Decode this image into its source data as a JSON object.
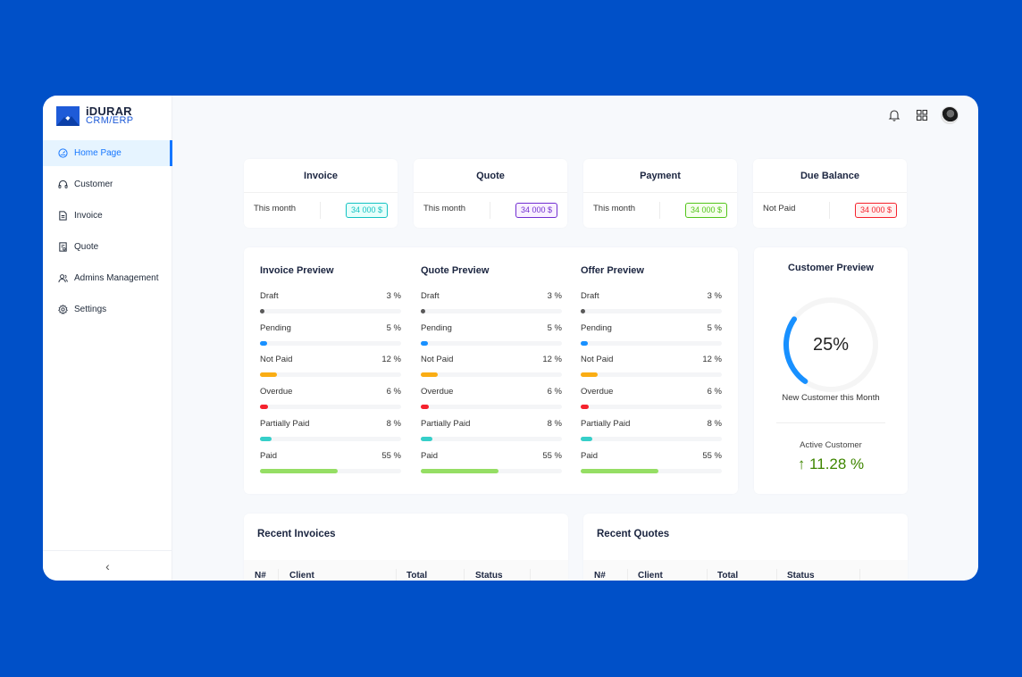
{
  "app": {
    "logo_main": "iDURAR",
    "logo_sub": "CRM/ERP"
  },
  "sidebar": {
    "items": [
      {
        "label": "Home Page",
        "icon": "dashboard-icon",
        "active": true
      },
      {
        "label": "Customer",
        "icon": "headset-icon",
        "active": false
      },
      {
        "label": "Invoice",
        "icon": "file-text-icon",
        "active": false
      },
      {
        "label": "Quote",
        "icon": "file-sync-icon",
        "active": false
      },
      {
        "label": "Admins Management",
        "icon": "team-icon",
        "active": false
      },
      {
        "label": "Settings",
        "icon": "gear-icon",
        "active": false
      }
    ],
    "collapse_glyph": "‹"
  },
  "header": {
    "icons": [
      "bell-icon",
      "apps-icon",
      "avatar"
    ]
  },
  "stats": [
    {
      "title": "Invoice",
      "label": "This month",
      "value": "34 000 $",
      "color": "#13c2c2",
      "bg": "#e6fffb"
    },
    {
      "title": "Quote",
      "label": "This month",
      "value": "34 000 $",
      "color": "#722ed1",
      "bg": "#f9f0ff"
    },
    {
      "title": "Payment",
      "label": "This month",
      "value": "34 000 $",
      "color": "#52c41a",
      "bg": "#f6ffed"
    },
    {
      "title": "Due Balance",
      "label": "Not Paid",
      "value": "34 000 $",
      "color": "#f5222d",
      "bg": "#fff1f0"
    }
  ],
  "previews": [
    {
      "title": "Invoice Preview",
      "rows": [
        {
          "label": "Draft",
          "value": "3 %",
          "percent": 3,
          "color": "#595959"
        },
        {
          "label": "Pending",
          "value": "5 %",
          "percent": 5,
          "color": "#1890ff"
        },
        {
          "label": "Not Paid",
          "value": "12 %",
          "percent": 12,
          "color": "#faad14"
        },
        {
          "label": "Overdue",
          "value": "6 %",
          "percent": 6,
          "color": "#f5222d"
        },
        {
          "label": "Partially Paid",
          "value": "8 %",
          "percent": 8,
          "color": "#36cfc9"
        },
        {
          "label": "Paid",
          "value": "55 %",
          "percent": 55,
          "color": "#95de64"
        }
      ]
    },
    {
      "title": "Quote Preview",
      "rows": [
        {
          "label": "Draft",
          "value": "3 %",
          "percent": 3,
          "color": "#595959"
        },
        {
          "label": "Pending",
          "value": "5 %",
          "percent": 5,
          "color": "#1890ff"
        },
        {
          "label": "Not Paid",
          "value": "12 %",
          "percent": 12,
          "color": "#faad14"
        },
        {
          "label": "Overdue",
          "value": "6 %",
          "percent": 6,
          "color": "#f5222d"
        },
        {
          "label": "Partially Paid",
          "value": "8 %",
          "percent": 8,
          "color": "#36cfc9"
        },
        {
          "label": "Paid",
          "value": "55 %",
          "percent": 55,
          "color": "#95de64"
        }
      ]
    },
    {
      "title": "Offer Preview",
      "rows": [
        {
          "label": "Draft",
          "value": "3 %",
          "percent": 3,
          "color": "#595959"
        },
        {
          "label": "Pending",
          "value": "5 %",
          "percent": 5,
          "color": "#1890ff"
        },
        {
          "label": "Not Paid",
          "value": "12 %",
          "percent": 12,
          "color": "#faad14"
        },
        {
          "label": "Overdue",
          "value": "6 %",
          "percent": 6,
          "color": "#f5222d"
        },
        {
          "label": "Partially Paid",
          "value": "8 %",
          "percent": 8,
          "color": "#36cfc9"
        },
        {
          "label": "Paid",
          "value": "55 %",
          "percent": 55,
          "color": "#95de64"
        }
      ]
    }
  ],
  "customer_preview": {
    "title": "Customer Preview",
    "percent_label": "25%",
    "percent": 25,
    "subtitle": "New Customer this Month",
    "active_label": "Active Customer",
    "active_value": "11.28 %",
    "gauge_color": "#1890ff",
    "trend_color": "#3f8600"
  },
  "recent": [
    {
      "title": "Recent Invoices",
      "columns": [
        "N#",
        "Client",
        "Total",
        "Status"
      ]
    },
    {
      "title": "Recent Quotes",
      "columns": [
        "N#",
        "Client",
        "Total",
        "Status"
      ]
    }
  ]
}
